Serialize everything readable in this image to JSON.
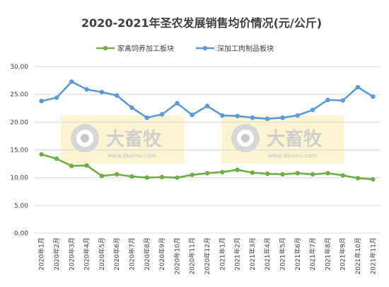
{
  "chart_data": {
    "type": "line",
    "title": "2020-2021年圣农发展销售均价情况(元/公斤)",
    "xlabel": "",
    "ylabel": "",
    "ylim": [
      0,
      30
    ],
    "yticks": [
      "0.00",
      "5.00",
      "10.00",
      "15.00",
      "20.00",
      "25.00",
      "30.00"
    ],
    "grid": true,
    "legend_position": "top",
    "categories": [
      "2020年1月",
      "2020年2月",
      "2020年3月",
      "2020年4月",
      "2020年5月",
      "2020年6月",
      "2020年7月",
      "2020年8月",
      "2020年9月",
      "2020年10月",
      "2020年11月",
      "2020年12月",
      "2021年1月",
      "2021年2月",
      "2021年3月",
      "2021年4月",
      "2021年5月",
      "2021年6月",
      "2021年7月",
      "2021年8月",
      "2021年9月",
      "2021年10月",
      "2021年11月"
    ],
    "series": [
      {
        "name": "家禽饲养加工板块",
        "color": "#70ad47",
        "values": [
          14.2,
          13.4,
          12.1,
          12.2,
          10.3,
          10.6,
          10.2,
          10.0,
          10.1,
          10.0,
          10.5,
          10.8,
          11.0,
          11.4,
          10.9,
          10.7,
          10.6,
          10.8,
          10.6,
          10.8,
          10.4,
          9.9,
          9.7
        ]
      },
      {
        "name": "深加工肉制品板块",
        "color": "#5b9bd5",
        "values": [
          23.8,
          24.4,
          27.3,
          25.9,
          25.4,
          24.8,
          22.6,
          20.8,
          21.4,
          23.4,
          21.3,
          22.9,
          21.2,
          21.1,
          20.8,
          20.6,
          20.8,
          21.2,
          22.2,
          24.0,
          23.9,
          26.3,
          24.6
        ]
      }
    ]
  },
  "watermark": {
    "brand": "大畜牧",
    "url": "www.dxumu.com"
  }
}
